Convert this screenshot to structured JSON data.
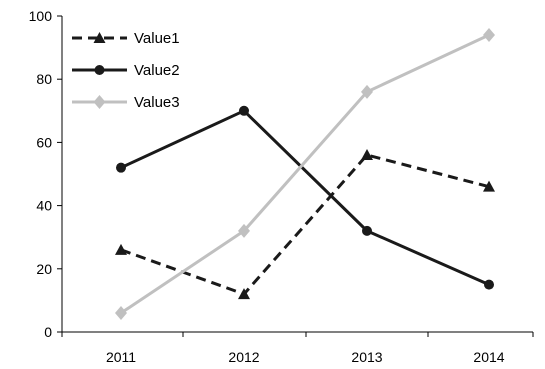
{
  "chart_data": {
    "type": "line",
    "title": "",
    "xlabel": "",
    "ylabel": "",
    "categories": [
      "2011",
      "2012",
      "2013",
      "2014"
    ],
    "ylim": [
      0,
      100
    ],
    "yticks": [
      0,
      20,
      40,
      60,
      80,
      100
    ],
    "grid": false,
    "legend_position": "top-left",
    "series": [
      {
        "name": "Value1",
        "values": [
          26,
          12,
          56,
          46
        ],
        "color": "#1a1a1a",
        "line_style": "dashed",
        "marker": "triangle"
      },
      {
        "name": "Value2",
        "values": [
          52,
          70,
          32,
          15
        ],
        "color": "#1a1a1a",
        "line_style": "solid",
        "marker": "circle"
      },
      {
        "name": "Value3",
        "values": [
          6,
          32,
          76,
          94
        ],
        "color": "#c0c0c0",
        "line_style": "solid",
        "marker": "diamond"
      }
    ]
  }
}
